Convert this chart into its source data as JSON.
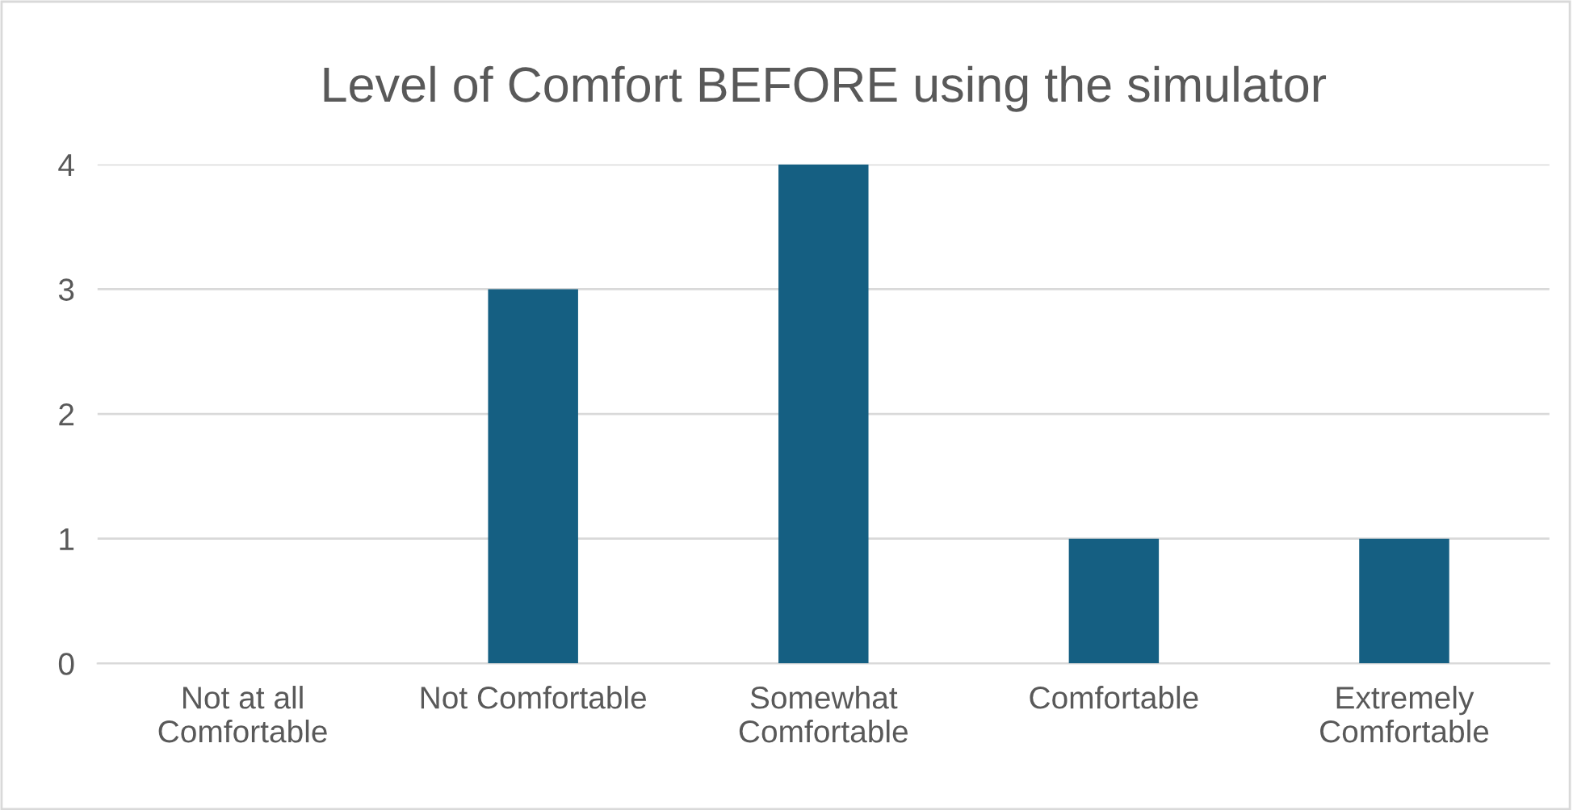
{
  "chart_data": {
    "type": "bar",
    "title": "Level of Comfort BEFORE using the simulator",
    "categories": [
      "Not at all\nComfortable",
      "Not Comfortable",
      "Somewhat\nComfortable",
      "Comfortable",
      "Extremely\nComfortable"
    ],
    "values": [
      0,
      3,
      4,
      1,
      1
    ],
    "color": "#155f82",
    "ylim": [
      0,
      4
    ],
    "yticks": [
      0,
      1,
      2,
      3,
      4
    ],
    "grid": "y",
    "legend": false
  }
}
